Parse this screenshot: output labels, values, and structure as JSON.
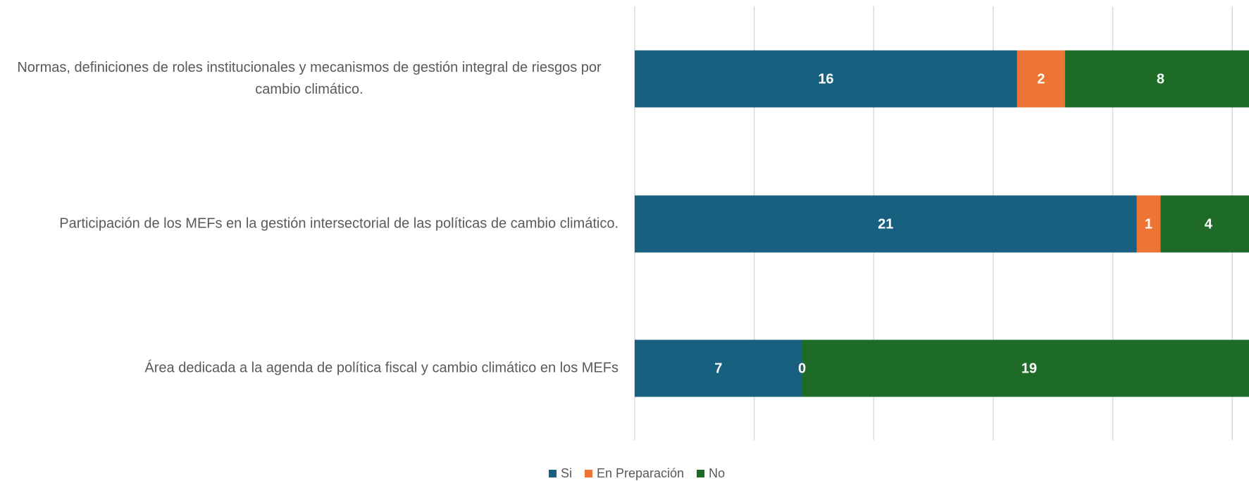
{
  "chart_data": {
    "type": "stacked_barh",
    "categories": [
      "Normas, definiciones de roles institucionales y mecanismos de gestión integral de riesgos por cambio climático.",
      "Participación de los MEFs en la gestión intersectorial de las políticas de cambio climático.",
      "Área dedicada a la agenda de política fiscal y cambio climático en los MEFs"
    ],
    "series": [
      {
        "name": "Si",
        "color": "#17607f",
        "values": [
          16,
          21,
          7
        ]
      },
      {
        "name": "En Preparación",
        "color": "#ed7432",
        "values": [
          2,
          1,
          0
        ]
      },
      {
        "name": "No",
        "color": "#1e6b27",
        "values": [
          8,
          4,
          19
        ]
      }
    ],
    "xlim": [
      0,
      25.7
    ],
    "xticks": [
      0,
      5,
      10,
      15,
      20,
      25
    ],
    "grid": true,
    "legend": "bottom"
  }
}
